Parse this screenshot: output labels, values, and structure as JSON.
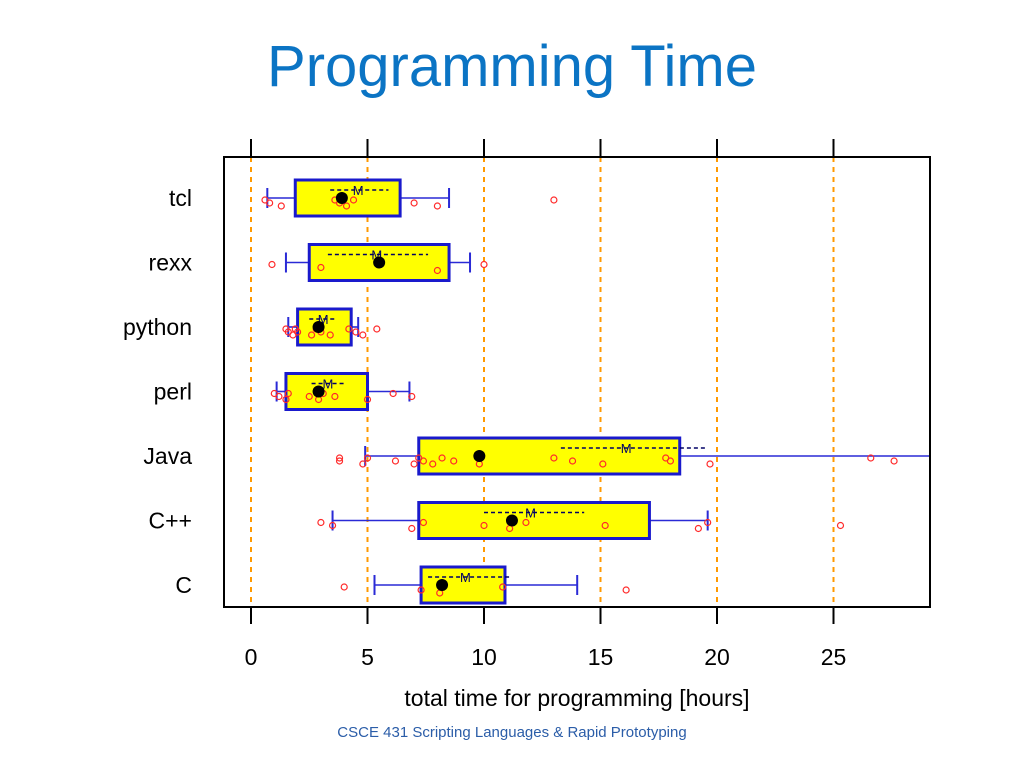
{
  "slide": {
    "title": "Programming Time",
    "footer": "CSCE 431 Scripting Languages & Rapid Prototyping"
  },
  "colors": {
    "title": "#0b74c4",
    "box_fill": "#ffff00",
    "box_stroke": "#1a1acc",
    "whisker": "#2a2ad6",
    "points": "#ff2a2a",
    "grid": "#ff9900",
    "median": "#000000",
    "mean_line": "#000066",
    "footer": "#2b5da8"
  },
  "chart_data": {
    "type": "boxplot",
    "xlabel": "total time for programming [hours]",
    "xlim": [
      -1,
      29.3
    ],
    "x_ticks": [
      0,
      5,
      10,
      15,
      20,
      25
    ],
    "grid": "vertical dashed at ticks",
    "mean_marker": "M",
    "categories": [
      "tcl",
      "rexx",
      "python",
      "perl",
      "Java",
      "C++",
      "C"
    ],
    "series": [
      {
        "name": "tcl",
        "whisker_low": 0.7,
        "q1": 1.9,
        "median": 3.9,
        "q3": 6.4,
        "whisker_high": 8.5,
        "mean": 4.6,
        "mean_range": [
          3.4,
          5.9
        ],
        "points": [
          0.6,
          0.8,
          1.3,
          3.6,
          3.8,
          4.1,
          4.4,
          7.0,
          8.0,
          13.0
        ]
      },
      {
        "name": "rexx",
        "whisker_low": 1.5,
        "q1": 2.5,
        "median": 5.5,
        "q3": 8.5,
        "whisker_high": 9.4,
        "mean": 5.4,
        "mean_range": [
          3.3,
          7.6
        ],
        "points": [
          0.9,
          3.0,
          8.0,
          10.0
        ]
      },
      {
        "name": "python",
        "whisker_low": 1.6,
        "q1": 2.0,
        "median": 2.9,
        "q3": 4.3,
        "whisker_high": 4.6,
        "mean": 3.1,
        "mean_range": [
          2.5,
          3.7
        ],
        "points": [
          1.5,
          1.6,
          1.8,
          1.9,
          2.0,
          2.6,
          2.8,
          3.0,
          3.4,
          4.2,
          4.5,
          4.8,
          5.4
        ]
      },
      {
        "name": "perl",
        "whisker_low": 1.1,
        "q1": 1.5,
        "median": 2.9,
        "q3": 5.0,
        "whisker_high": 6.8,
        "mean": 3.3,
        "mean_range": [
          2.6,
          4.0
        ],
        "points": [
          1.0,
          1.2,
          1.5,
          1.6,
          2.5,
          2.9,
          3.1,
          3.6,
          5.0,
          6.1,
          6.9
        ]
      },
      {
        "name": "Java",
        "whisker_low": 4.9,
        "q1": 7.2,
        "median": 9.8,
        "q3": 18.4,
        "whisker_high": 29.3,
        "mean": 16.1,
        "mean_range": [
          13.3,
          19.5
        ],
        "points": [
          3.8,
          3.8,
          4.8,
          5.0,
          6.2,
          7.0,
          7.2,
          7.4,
          7.8,
          8.2,
          8.7,
          9.8,
          13.0,
          13.8,
          15.1,
          17.8,
          18.0,
          19.7,
          26.6,
          27.6
        ]
      },
      {
        "name": "C++",
        "whisker_low": 3.5,
        "q1": 7.2,
        "median": 11.2,
        "q3": 17.1,
        "whisker_high": 19.6,
        "mean": 12.0,
        "mean_range": [
          10.0,
          14.3
        ],
        "points": [
          3.0,
          3.5,
          6.9,
          7.4,
          10.0,
          11.1,
          11.8,
          15.2,
          19.2,
          19.6,
          25.3
        ]
      },
      {
        "name": "C",
        "whisker_low": 5.3,
        "q1": 7.3,
        "median": 8.2,
        "q3": 10.9,
        "whisker_high": 14.0,
        "mean": 9.2,
        "mean_range": [
          7.6,
          11.2
        ],
        "points": [
          4.0,
          7.3,
          8.1,
          10.8,
          16.1
        ]
      }
    ]
  }
}
